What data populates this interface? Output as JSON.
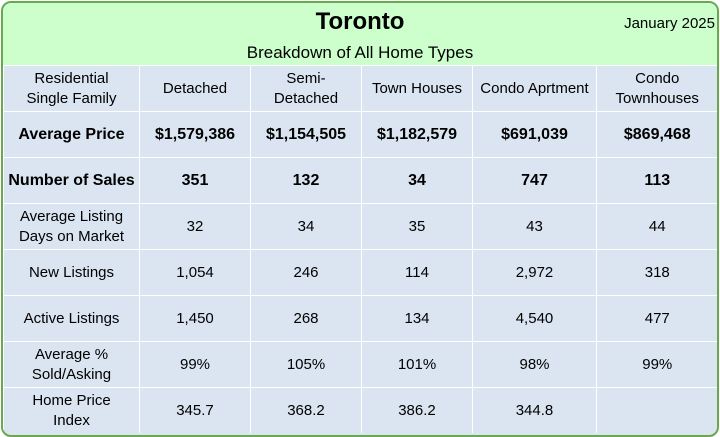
{
  "title": "Toronto",
  "subtitle": "Breakdown of All Home Types",
  "date": "January 2025",
  "columns": [
    "Residential\nSingle Family",
    "Detached",
    "Semi-\nDetached",
    "Town Houses",
    "Condo Aprtment",
    "Condo\nTownhouses"
  ],
  "rows": [
    {
      "label": "Average Price",
      "values": [
        "$1,579,386",
        "$1,154,505",
        "$1,182,579",
        "$691,039",
        "$869,468"
      ]
    },
    {
      "label": "Number of Sales",
      "values": [
        "351",
        "132",
        "34",
        "747",
        "113"
      ]
    },
    {
      "label": "Average Listing\nDays on Market",
      "values": [
        "32",
        "34",
        "35",
        "43",
        "44"
      ]
    },
    {
      "label": "New Listings",
      "values": [
        "1,054",
        "246",
        "114",
        "2,972",
        "318"
      ]
    },
    {
      "label": "Active Listings",
      "values": [
        "1,450",
        "268",
        "134",
        "4,540",
        "477"
      ]
    },
    {
      "label": "Average %\nSold/Asking",
      "values": [
        "99%",
        "105%",
        "101%",
        "98%",
        "99%"
      ]
    },
    {
      "label": "Home Price\nIndex",
      "values": [
        "345.7",
        "368.2",
        "386.2",
        "344.8",
        ""
      ]
    }
  ],
  "colors": {
    "header_bg": "#ccffcc",
    "table_bg": "#dbe5f1",
    "border": "#6aa84f"
  }
}
